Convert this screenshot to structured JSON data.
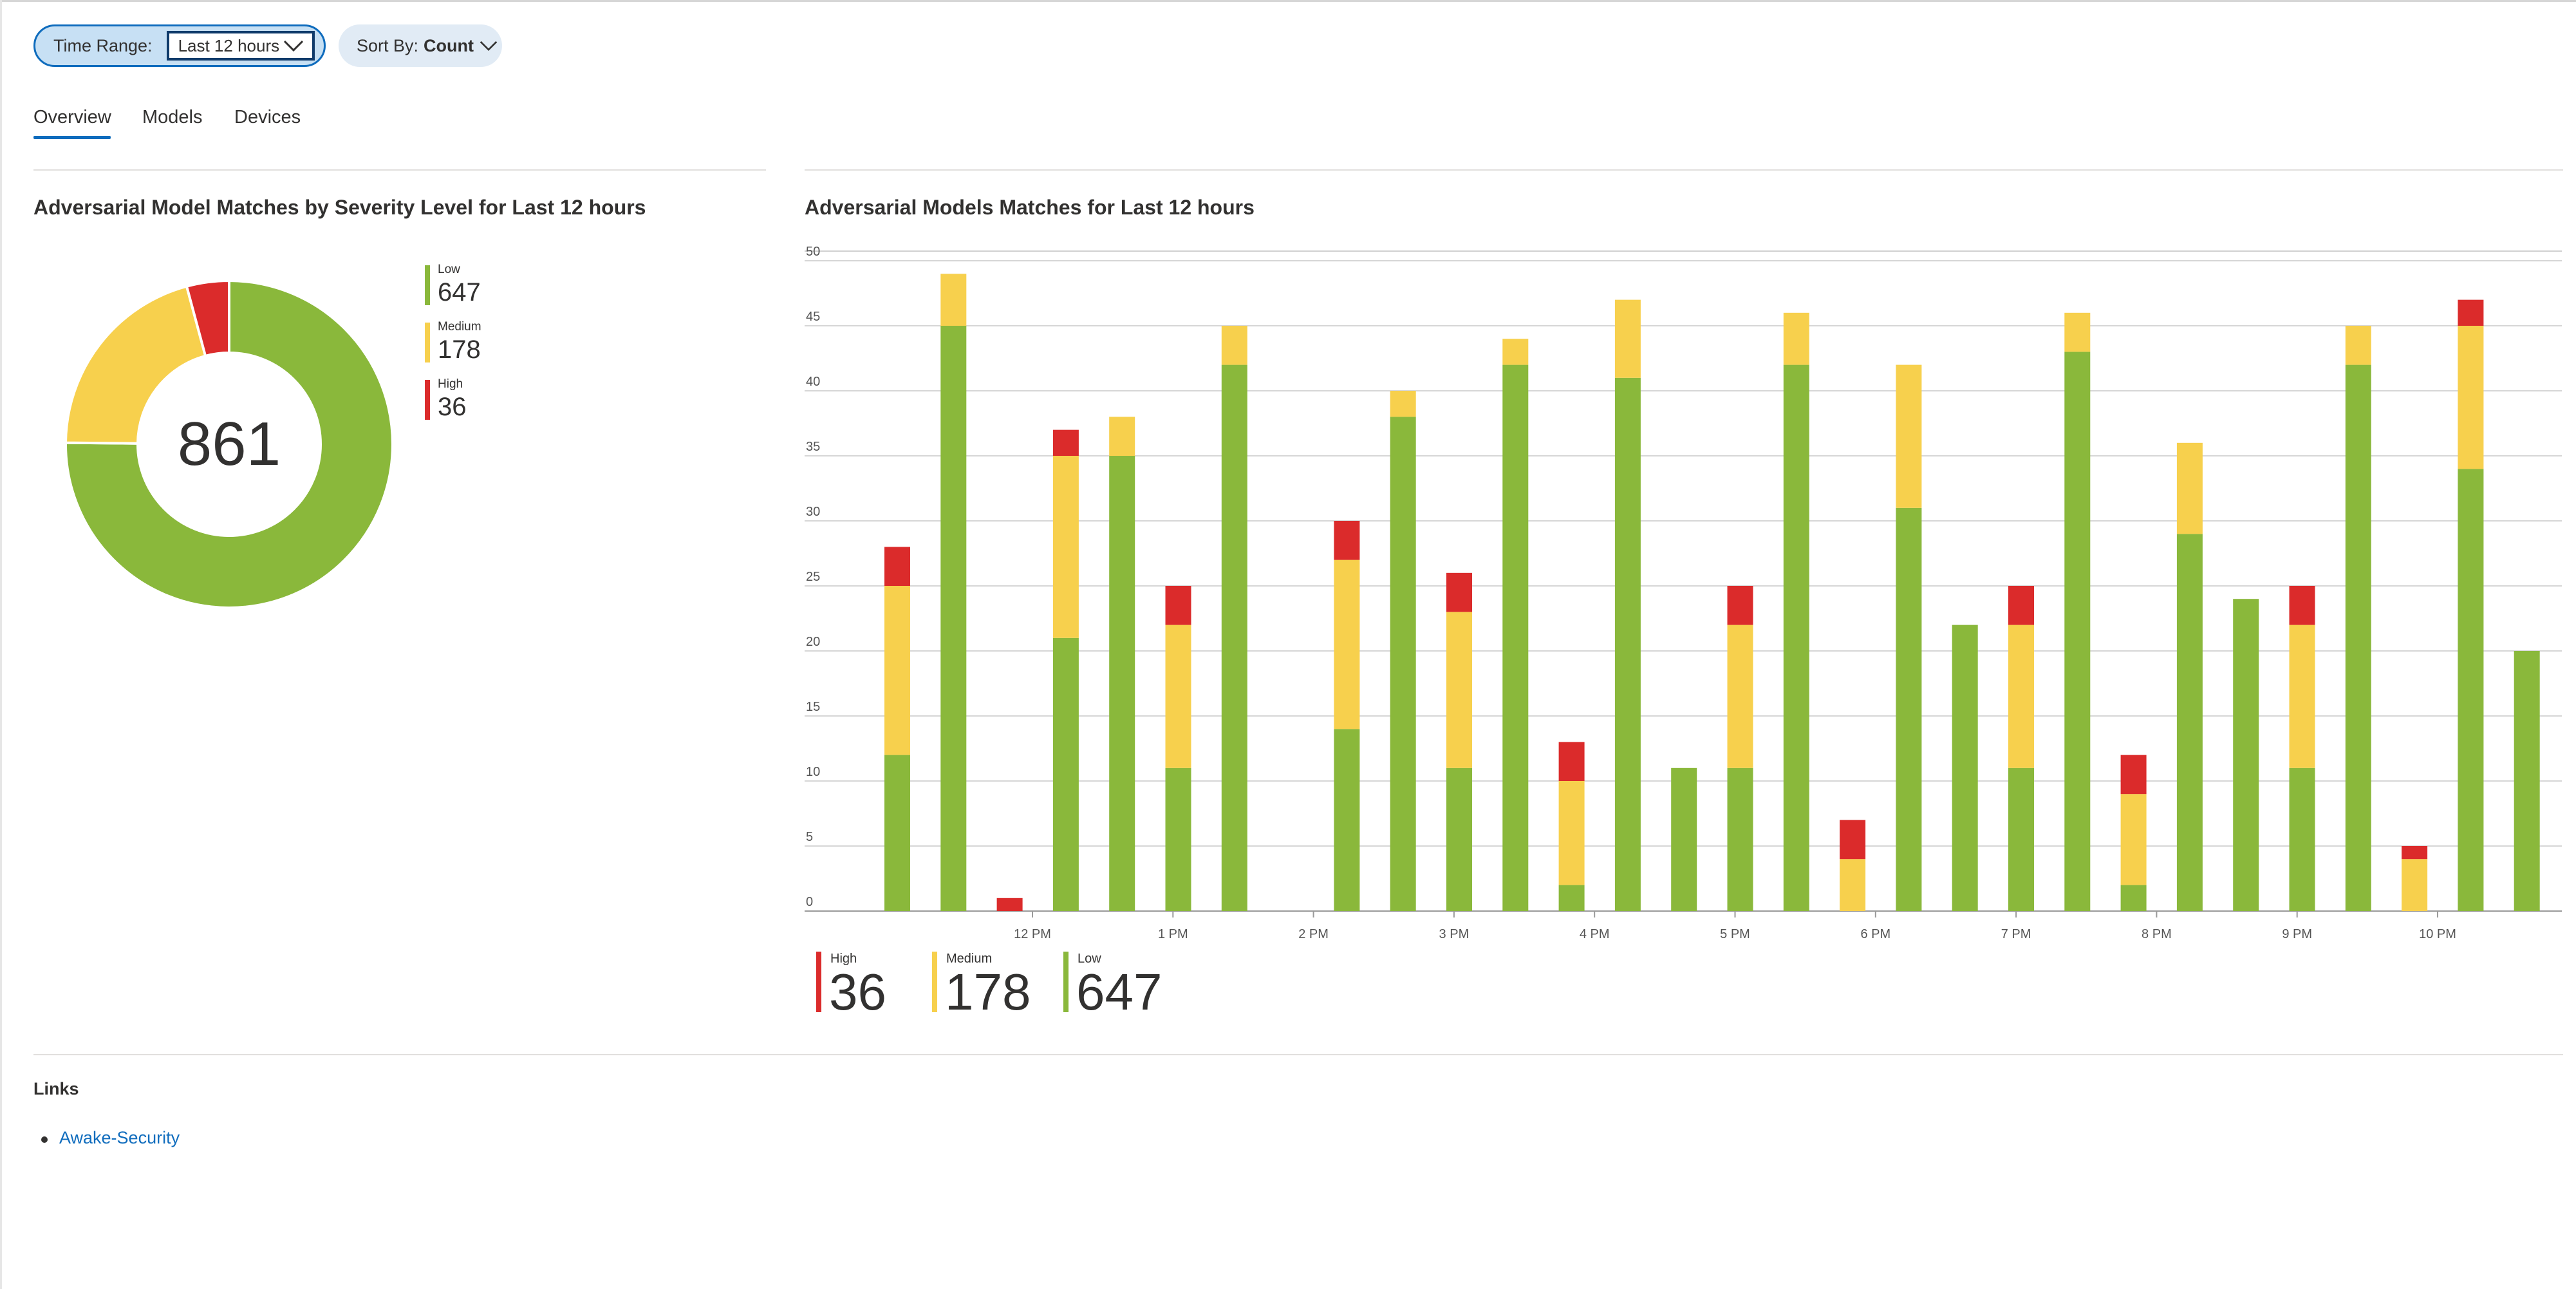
{
  "filters": {
    "time_range": {
      "label": "Time Range:",
      "value": "Last 12 hours"
    },
    "sort_by": {
      "label": "Sort By:",
      "value": "Count"
    }
  },
  "tabs": [
    {
      "label": "Overview",
      "selected": true
    },
    {
      "label": "Models",
      "selected": false
    },
    {
      "label": "Devices",
      "selected": false
    }
  ],
  "colors": {
    "low": "#8ab83b",
    "medium": "#f7d04d",
    "high": "#db2b2b",
    "accent": "#0f6cbd"
  },
  "severity_panel": {
    "title": "Adversarial Model Matches by Severity Level for Last 12 hours",
    "total": "861",
    "legend": [
      {
        "label": "Low",
        "value": "647"
      },
      {
        "label": "Medium",
        "value": "178"
      },
      {
        "label": "High",
        "value": "36"
      }
    ]
  },
  "matches_panel": {
    "title": "Adversarial Models Matches for Last 12 hours",
    "legend": [
      {
        "label": "High",
        "value": "36"
      },
      {
        "label": "Medium",
        "value": "178"
      },
      {
        "label": "Low",
        "value": "647"
      }
    ]
  },
  "chart_data": [
    {
      "type": "pie",
      "title": "Adversarial Model Matches by Severity Level for Last 12 hours",
      "center_label": "861",
      "slices": [
        {
          "name": "Low",
          "value": 647
        },
        {
          "name": "Medium",
          "value": 178
        },
        {
          "name": "High",
          "value": 36
        }
      ],
      "legend": "right"
    },
    {
      "type": "bar",
      "stacked": true,
      "title": "Adversarial Models Matches for Last 12 hours",
      "x_ticks": [
        "12 PM",
        "1 PM",
        "2 PM",
        "3 PM",
        "4 PM",
        "5 PM",
        "6 PM",
        "7 PM",
        "8 PM",
        "9 PM",
        "10 PM"
      ],
      "y_ticks": [
        0,
        5,
        10,
        15,
        20,
        25,
        30,
        35,
        40,
        45,
        50
      ],
      "ylim": [
        0,
        50
      ],
      "grid": true,
      "legend": "bottom",
      "series": [
        {
          "name": "Low",
          "values": [
            12,
            45,
            0,
            21,
            35,
            11,
            42,
            0,
            14,
            38,
            11,
            42,
            2,
            41,
            11,
            11,
            42,
            0,
            31,
            22,
            11,
            43,
            2,
            29,
            24,
            11,
            42,
            0,
            34,
            20
          ]
        },
        {
          "name": "Medium",
          "values": [
            13,
            4,
            0,
            14,
            3,
            11,
            3,
            0,
            13,
            2,
            12,
            2,
            8,
            6,
            0,
            11,
            4,
            4,
            11,
            0,
            11,
            3,
            7,
            7,
            0,
            11,
            3,
            4,
            11,
            0
          ]
        },
        {
          "name": "High",
          "values": [
            3,
            0,
            1,
            2,
            0,
            3,
            0,
            0,
            3,
            0,
            3,
            0,
            3,
            0,
            0,
            3,
            0,
            3,
            0,
            0,
            3,
            0,
            3,
            0,
            0,
            3,
            0,
            1,
            2,
            0
          ]
        }
      ]
    }
  ],
  "links": {
    "title": "Links",
    "items": [
      {
        "label": "Awake-Security"
      }
    ]
  }
}
